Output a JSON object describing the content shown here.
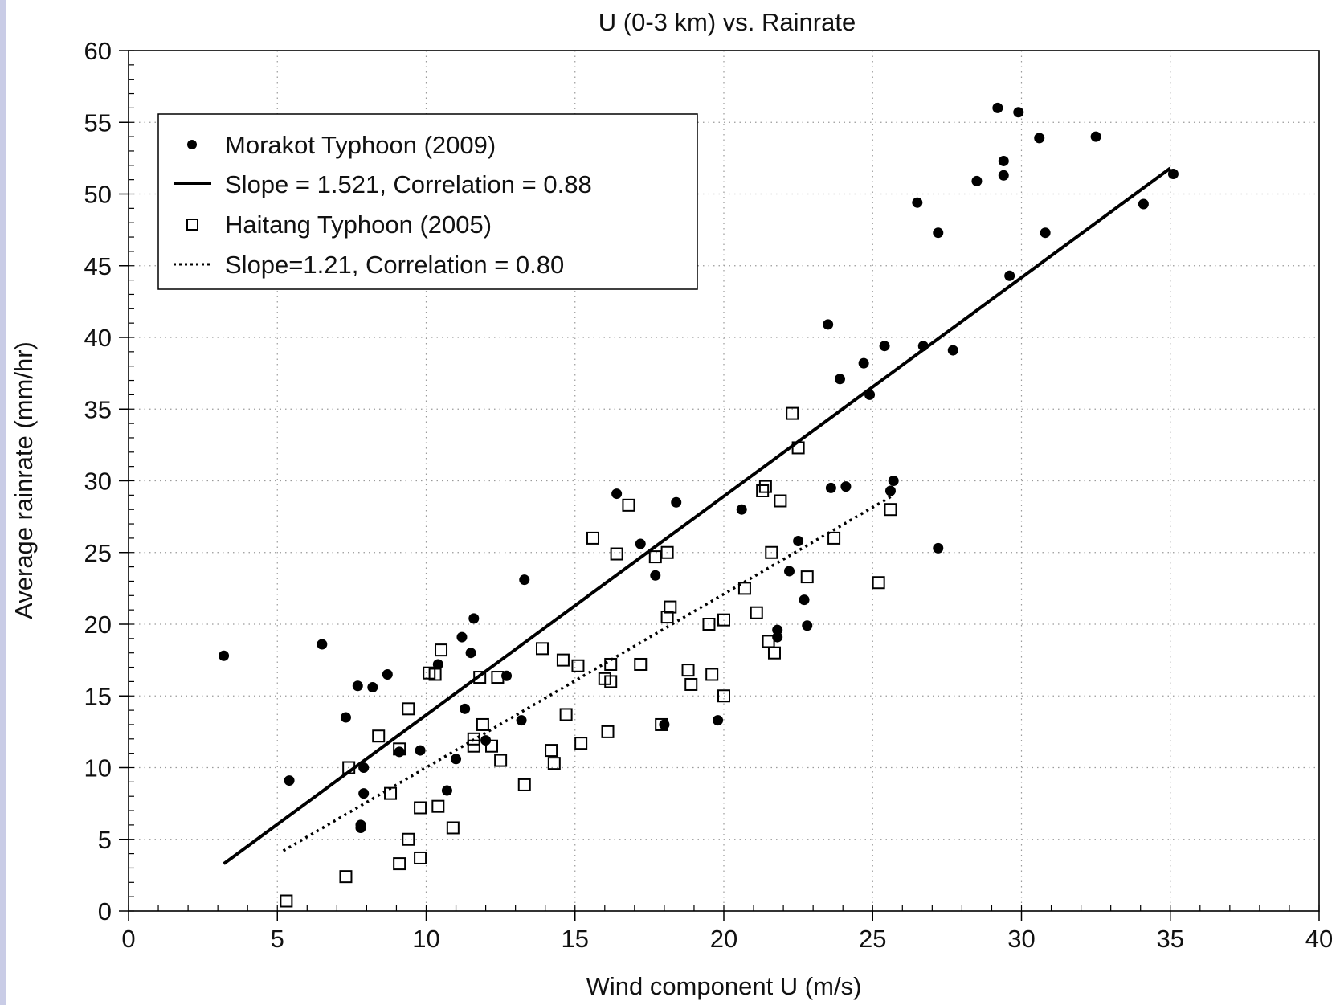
{
  "chart_data": {
    "type": "scatter",
    "title": "U (0-3 km) vs. Rainrate",
    "xlabel": "Wind component U (m/s)",
    "ylabel": "Average rainrate (mm/hr)",
    "xlim": [
      0,
      40
    ],
    "ylim": [
      0,
      60
    ],
    "x_ticks": [
      0,
      5,
      10,
      15,
      20,
      25,
      30,
      35,
      40
    ],
    "y_ticks": [
      0,
      5,
      10,
      15,
      20,
      25,
      30,
      35,
      40,
      45,
      50,
      55,
      60
    ],
    "grid": true,
    "legend_position": "top-left",
    "legend": [
      {
        "label": "Morakot Typhoon (2009)",
        "marker": "filled-circle"
      },
      {
        "label": "Slope = 1.521, Correlation = 0.88",
        "marker": "solid-line"
      },
      {
        "label": "Haitang Typhoon (2005)",
        "marker": "open-square"
      },
      {
        "label": "Slope=1.21, Correlation = 0.80",
        "marker": "dotted-line"
      }
    ],
    "series": [
      {
        "name": "Morakot Typhoon (2009)",
        "marker": "filled-circle",
        "color": "#000000",
        "points": [
          [
            3.2,
            17.8
          ],
          [
            5.4,
            9.1
          ],
          [
            6.5,
            18.6
          ],
          [
            7.3,
            13.5
          ],
          [
            7.7,
            15.7
          ],
          [
            7.9,
            10.0
          ],
          [
            7.9,
            8.2
          ],
          [
            7.8,
            6.0
          ],
          [
            7.8,
            5.8
          ],
          [
            8.2,
            15.6
          ],
          [
            8.7,
            16.5
          ],
          [
            9.1,
            11.1
          ],
          [
            9.8,
            11.2
          ],
          [
            10.4,
            17.2
          ],
          [
            10.7,
            8.4
          ],
          [
            11.0,
            10.6
          ],
          [
            11.2,
            19.1
          ],
          [
            11.3,
            14.1
          ],
          [
            11.5,
            18.0
          ],
          [
            11.6,
            20.4
          ],
          [
            12.0,
            11.9
          ],
          [
            12.7,
            16.4
          ],
          [
            13.2,
            13.3
          ],
          [
            13.3,
            23.1
          ],
          [
            16.4,
            29.1
          ],
          [
            17.2,
            25.6
          ],
          [
            17.7,
            23.4
          ],
          [
            18.0,
            13.0
          ],
          [
            18.4,
            28.5
          ],
          [
            19.8,
            13.3
          ],
          [
            20.6,
            28.0
          ],
          [
            21.8,
            19.6
          ],
          [
            21.8,
            19.1
          ],
          [
            22.2,
            23.7
          ],
          [
            22.5,
            25.8
          ],
          [
            22.7,
            21.7
          ],
          [
            22.8,
            19.9
          ],
          [
            23.5,
            40.9
          ],
          [
            23.6,
            29.5
          ],
          [
            23.9,
            37.1
          ],
          [
            24.1,
            29.6
          ],
          [
            24.7,
            38.2
          ],
          [
            24.9,
            36.0
          ],
          [
            25.4,
            39.4
          ],
          [
            25.6,
            29.3
          ],
          [
            25.7,
            30.0
          ],
          [
            26.5,
            49.4
          ],
          [
            26.7,
            39.4
          ],
          [
            27.2,
            25.3
          ],
          [
            27.2,
            47.3
          ],
          [
            27.7,
            39.1
          ],
          [
            28.5,
            50.9
          ],
          [
            29.2,
            56.0
          ],
          [
            29.4,
            52.3
          ],
          [
            29.4,
            51.3
          ],
          [
            29.6,
            44.3
          ],
          [
            29.9,
            55.7
          ],
          [
            30.6,
            53.9
          ],
          [
            30.8,
            47.3
          ],
          [
            32.5,
            54.0
          ],
          [
            34.1,
            49.3
          ],
          [
            35.1,
            51.4
          ]
        ]
      },
      {
        "name": "Haitang Typhoon (2005)",
        "marker": "open-square",
        "color": "#000000",
        "points": [
          [
            5.3,
            0.7
          ],
          [
            7.3,
            2.4
          ],
          [
            7.4,
            10.0
          ],
          [
            8.4,
            12.2
          ],
          [
            8.8,
            8.2
          ],
          [
            9.1,
            11.3
          ],
          [
            9.1,
            3.3
          ],
          [
            9.4,
            5.0
          ],
          [
            9.4,
            14.1
          ],
          [
            9.8,
            7.2
          ],
          [
            9.8,
            3.7
          ],
          [
            10.1,
            16.6
          ],
          [
            10.3,
            16.5
          ],
          [
            10.4,
            7.3
          ],
          [
            10.5,
            18.2
          ],
          [
            10.9,
            5.8
          ],
          [
            11.6,
            11.5
          ],
          [
            11.6,
            12.0
          ],
          [
            11.8,
            16.3
          ],
          [
            11.9,
            13.0
          ],
          [
            12.2,
            11.5
          ],
          [
            12.4,
            16.3
          ],
          [
            12.5,
            10.5
          ],
          [
            13.3,
            8.8
          ],
          [
            13.9,
            18.3
          ],
          [
            14.2,
            11.2
          ],
          [
            14.3,
            10.3
          ],
          [
            14.6,
            17.5
          ],
          [
            14.7,
            13.7
          ],
          [
            15.1,
            17.1
          ],
          [
            15.2,
            11.7
          ],
          [
            15.6,
            26.0
          ],
          [
            16.0,
            16.2
          ],
          [
            16.1,
            12.5
          ],
          [
            16.2,
            16.0
          ],
          [
            16.2,
            17.2
          ],
          [
            16.4,
            24.9
          ],
          [
            16.8,
            28.3
          ],
          [
            17.2,
            17.2
          ],
          [
            17.7,
            24.7
          ],
          [
            17.9,
            13.0
          ],
          [
            18.1,
            20.5
          ],
          [
            18.1,
            25.0
          ],
          [
            18.2,
            21.2
          ],
          [
            18.8,
            16.8
          ],
          [
            18.9,
            15.8
          ],
          [
            19.5,
            20.0
          ],
          [
            19.6,
            16.5
          ],
          [
            20.0,
            20.3
          ],
          [
            20.0,
            15.0
          ],
          [
            20.7,
            22.5
          ],
          [
            21.1,
            20.8
          ],
          [
            21.3,
            29.3
          ],
          [
            21.4,
            29.6
          ],
          [
            21.5,
            18.8
          ],
          [
            21.6,
            25.0
          ],
          [
            21.7,
            18.0
          ],
          [
            21.9,
            28.6
          ],
          [
            22.3,
            34.7
          ],
          [
            22.5,
            32.3
          ],
          [
            22.8,
            23.3
          ],
          [
            23.7,
            26.0
          ],
          [
            25.2,
            22.9
          ],
          [
            25.6,
            28.0
          ]
        ]
      }
    ],
    "fit_lines": [
      {
        "name": "Slope = 1.521, Correlation = 0.88",
        "style": "solid",
        "x": [
          3.2,
          35.0
        ],
        "y": [
          3.3,
          51.8
        ]
      },
      {
        "name": "Slope=1.21, Correlation = 0.80",
        "style": "dotted",
        "x": [
          5.2,
          25.7
        ],
        "y": [
          4.2,
          29.0
        ]
      }
    ]
  }
}
